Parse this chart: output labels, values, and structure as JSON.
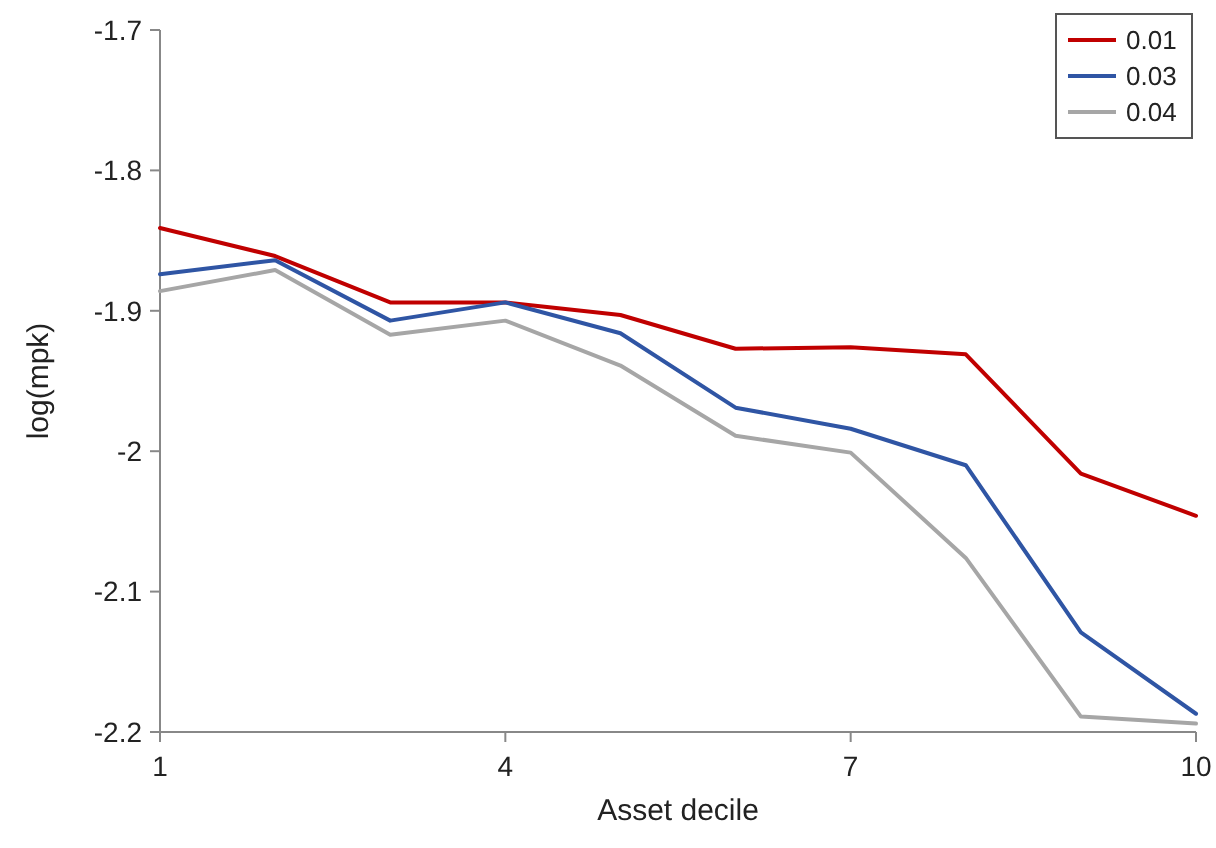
{
  "chart_data": {
    "type": "line",
    "xlabel": "Asset decile",
    "ylabel": "log(mpk)",
    "x": [
      1,
      2,
      3,
      4,
      5,
      6,
      7,
      8,
      9,
      10
    ],
    "xlim": [
      1,
      10
    ],
    "xticks": [
      1,
      4,
      7,
      10
    ],
    "ylim": [
      -2.2,
      -1.7
    ],
    "yticks": [
      -2.2,
      -2.1,
      -2,
      -1.9,
      -1.8,
      -1.7
    ],
    "legend": "top right",
    "grid": false,
    "marker": "none",
    "line_style": "solid",
    "series": [
      {
        "name": "0.01",
        "color": "#c00000",
        "values": [
          -1.841,
          -1.861,
          -1.894,
          -1.894,
          -1.903,
          -1.927,
          -1.926,
          -1.931,
          -2.016,
          -2.046
        ]
      },
      {
        "name": "0.03",
        "color": "#2f55a4",
        "values": [
          -1.874,
          -1.864,
          -1.907,
          -1.894,
          -1.916,
          -1.969,
          -1.984,
          -2.01,
          -2.129,
          -2.187
        ]
      },
      {
        "name": "0.04",
        "color": "#a6a6a6",
        "values": [
          -1.886,
          -1.871,
          -1.917,
          -1.907,
          -1.939,
          -1.989,
          -2.001,
          -2.076,
          -2.189,
          -2.194
        ]
      }
    ]
  }
}
